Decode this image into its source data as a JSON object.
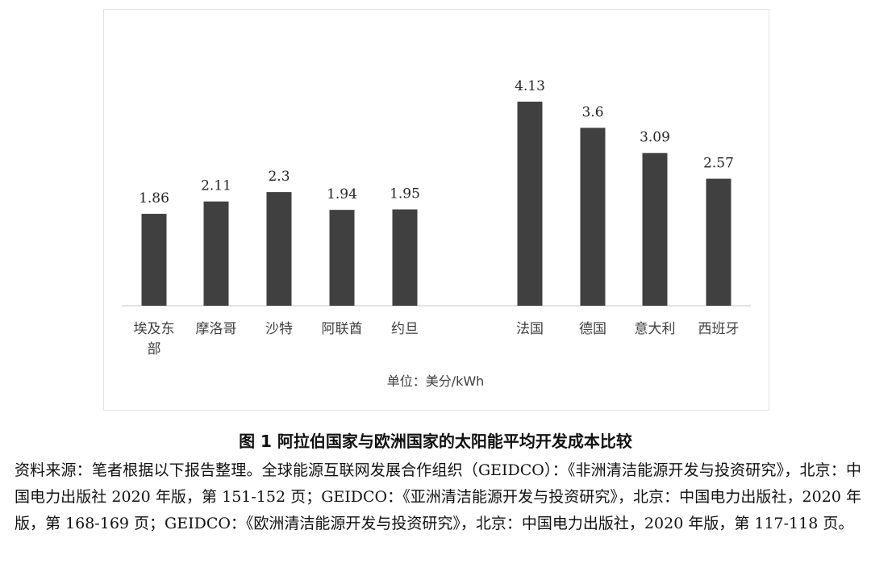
{
  "chart_data": {
    "type": "bar",
    "categories": [
      "埃及东部",
      "摩洛哥",
      "沙特",
      "阿联酋",
      "约旦",
      "法国",
      "德国",
      "意大利",
      "西班牙"
    ],
    "category_lines": [
      [
        "埃及东",
        "部"
      ],
      [
        "摩洛哥"
      ],
      [
        "沙特"
      ],
      [
        "阿联酋"
      ],
      [
        "约旦"
      ],
      [
        "法国"
      ],
      [
        "德国"
      ],
      [
        "意大利"
      ],
      [
        "西班牙"
      ]
    ],
    "values": [
      1.86,
      2.11,
      2.3,
      1.94,
      1.95,
      4.13,
      3.6,
      3.09,
      2.57
    ],
    "value_labels": [
      "1.86",
      "2.11",
      "2.3",
      "1.94",
      "1.95",
      "4.13",
      "3.6",
      "3.09",
      "2.57"
    ],
    "groups": [
      {
        "members": [
          "埃及东部",
          "摩洛哥",
          "沙特",
          "阿联酋",
          "约旦"
        ]
      },
      {
        "members": [
          "法国",
          "德国",
          "意大利",
          "西班牙"
        ]
      }
    ],
    "ylim": [
      0,
      4.13
    ],
    "bar_color": "#404040",
    "axis_color": "#d9d9d9",
    "grid": false,
    "legend": "none",
    "unit_label": "单位：美分/kWh"
  },
  "caption": "图 1  阿拉伯国家与欧洲国家的太阳能平均开发成本比较",
  "source_note": "资料来源：笔者根据以下报告整理。全球能源互联网发展合作组织（GEIDCO）：《非洲清洁能源开发与投资研究》，北京：中国电力出版社 2020 年版，第 151-152 页；GEIDCO：《亚洲清洁能源开发与投资研究》，北京：中国电力出版社，2020 年版，第 168-169 页；GEIDCO：《欧洲清洁能源开发与投资研究》，北京：中国电力出版社，2020 年版，第 117-118 页。"
}
